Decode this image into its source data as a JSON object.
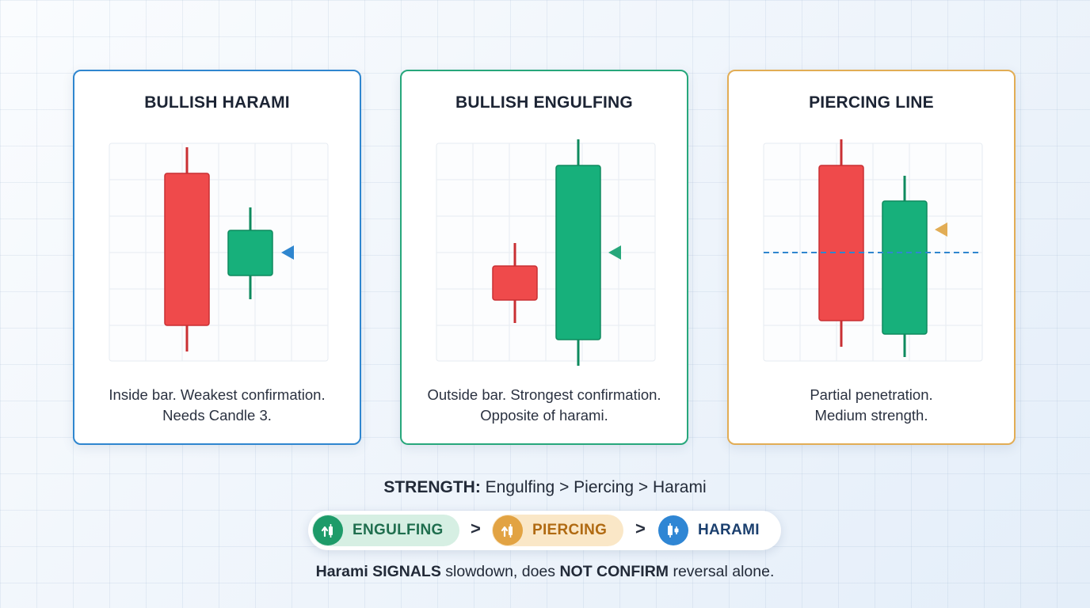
{
  "cards": [
    {
      "title": "BULLISH HARAMI",
      "desc_line1": "Inside bar. Weakest confirmation.",
      "desc_line2": "Needs Candle 3.",
      "border_color": "#2f86cf",
      "arrow_color": "#2f86cf",
      "arrow_icon": "arrow-left-icon"
    },
    {
      "title": "BULLISH ENGULFING",
      "desc_line1": "Outside bar. Strongest confirmation.",
      "desc_line2": "Opposite of harami.",
      "border_color": "#27a77b",
      "arrow_color": "#27a77b",
      "arrow_icon": "arrow-left-icon"
    },
    {
      "title": "PIERCING LINE",
      "desc_line1": "Partial penetration.",
      "desc_line2": "Medium strength.",
      "border_color": "#e2ad55",
      "arrow_color": "#e2ad55",
      "arrow_icon": "arrow-left-icon"
    }
  ],
  "strength": {
    "label": "STRENGTH:",
    "text": "Engulfing > Piercing > Harami"
  },
  "ranking": {
    "items": [
      {
        "label": "ENGULFING",
        "icon": "bullish-arrow-icon",
        "color": "#1e9b69"
      },
      {
        "label": "PIERCING",
        "icon": "bullish-arrow-icon",
        "color": "#e2a343"
      },
      {
        "label": "HARAMI",
        "icon": "candlestick-icon",
        "color": "#2f86d4"
      }
    ],
    "separator": ">"
  },
  "footer": {
    "part1": "Harami",
    "part2": "SIGNALS",
    "part3": "slowdown, does",
    "part4": "NOT CONFIRM",
    "part5": "reversal alone."
  },
  "colors": {
    "bearish": "#ef4a4b",
    "bullish": "#17b07b",
    "midpoint_line": "#2f86cf"
  }
}
